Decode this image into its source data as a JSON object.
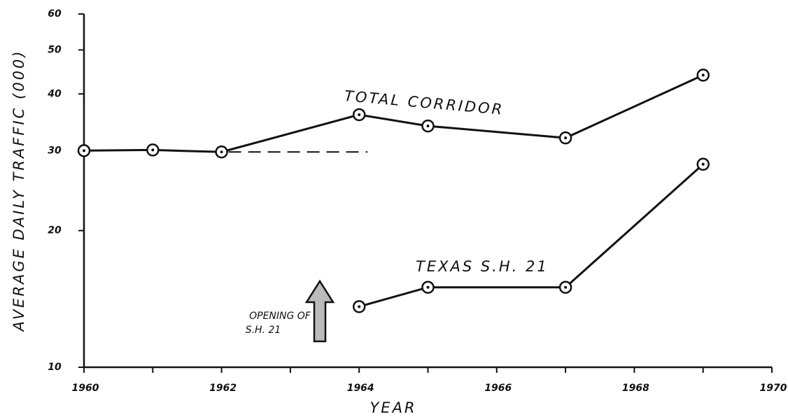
{
  "chart_data": {
    "type": "line",
    "xlabel": "YEAR",
    "ylabel": "AVERAGE DAILY TRAFFIC (000)",
    "log_y": true,
    "color": "#111111",
    "series": [
      {
        "name": "TOTAL CORRIDOR",
        "color": "#111111",
        "x": [
          1960,
          1961,
          1962,
          1964,
          1965,
          1967,
          1969
        ],
        "values": [
          30,
          30.1,
          29.8,
          36,
          34,
          32,
          44
        ]
      },
      {
        "name": "TEXAS S.H. 21",
        "color": "#111111",
        "x": [
          1964,
          1965,
          1967,
          1969
        ],
        "values": [
          13.6,
          15,
          15,
          28
        ]
      }
    ],
    "annotation": [
      "OPENING OF",
      "S.H. 21"
    ],
    "xlim": [
      1960,
      1970
    ],
    "xticks": [
      1960,
      1962,
      1964,
      1966,
      1968,
      1970
    ],
    "xminorticks": [
      1961,
      1963,
      1965,
      1967,
      1969
    ],
    "ylim": [
      10,
      60
    ],
    "yticks": [
      10,
      20,
      30,
      40,
      50,
      60
    ]
  }
}
